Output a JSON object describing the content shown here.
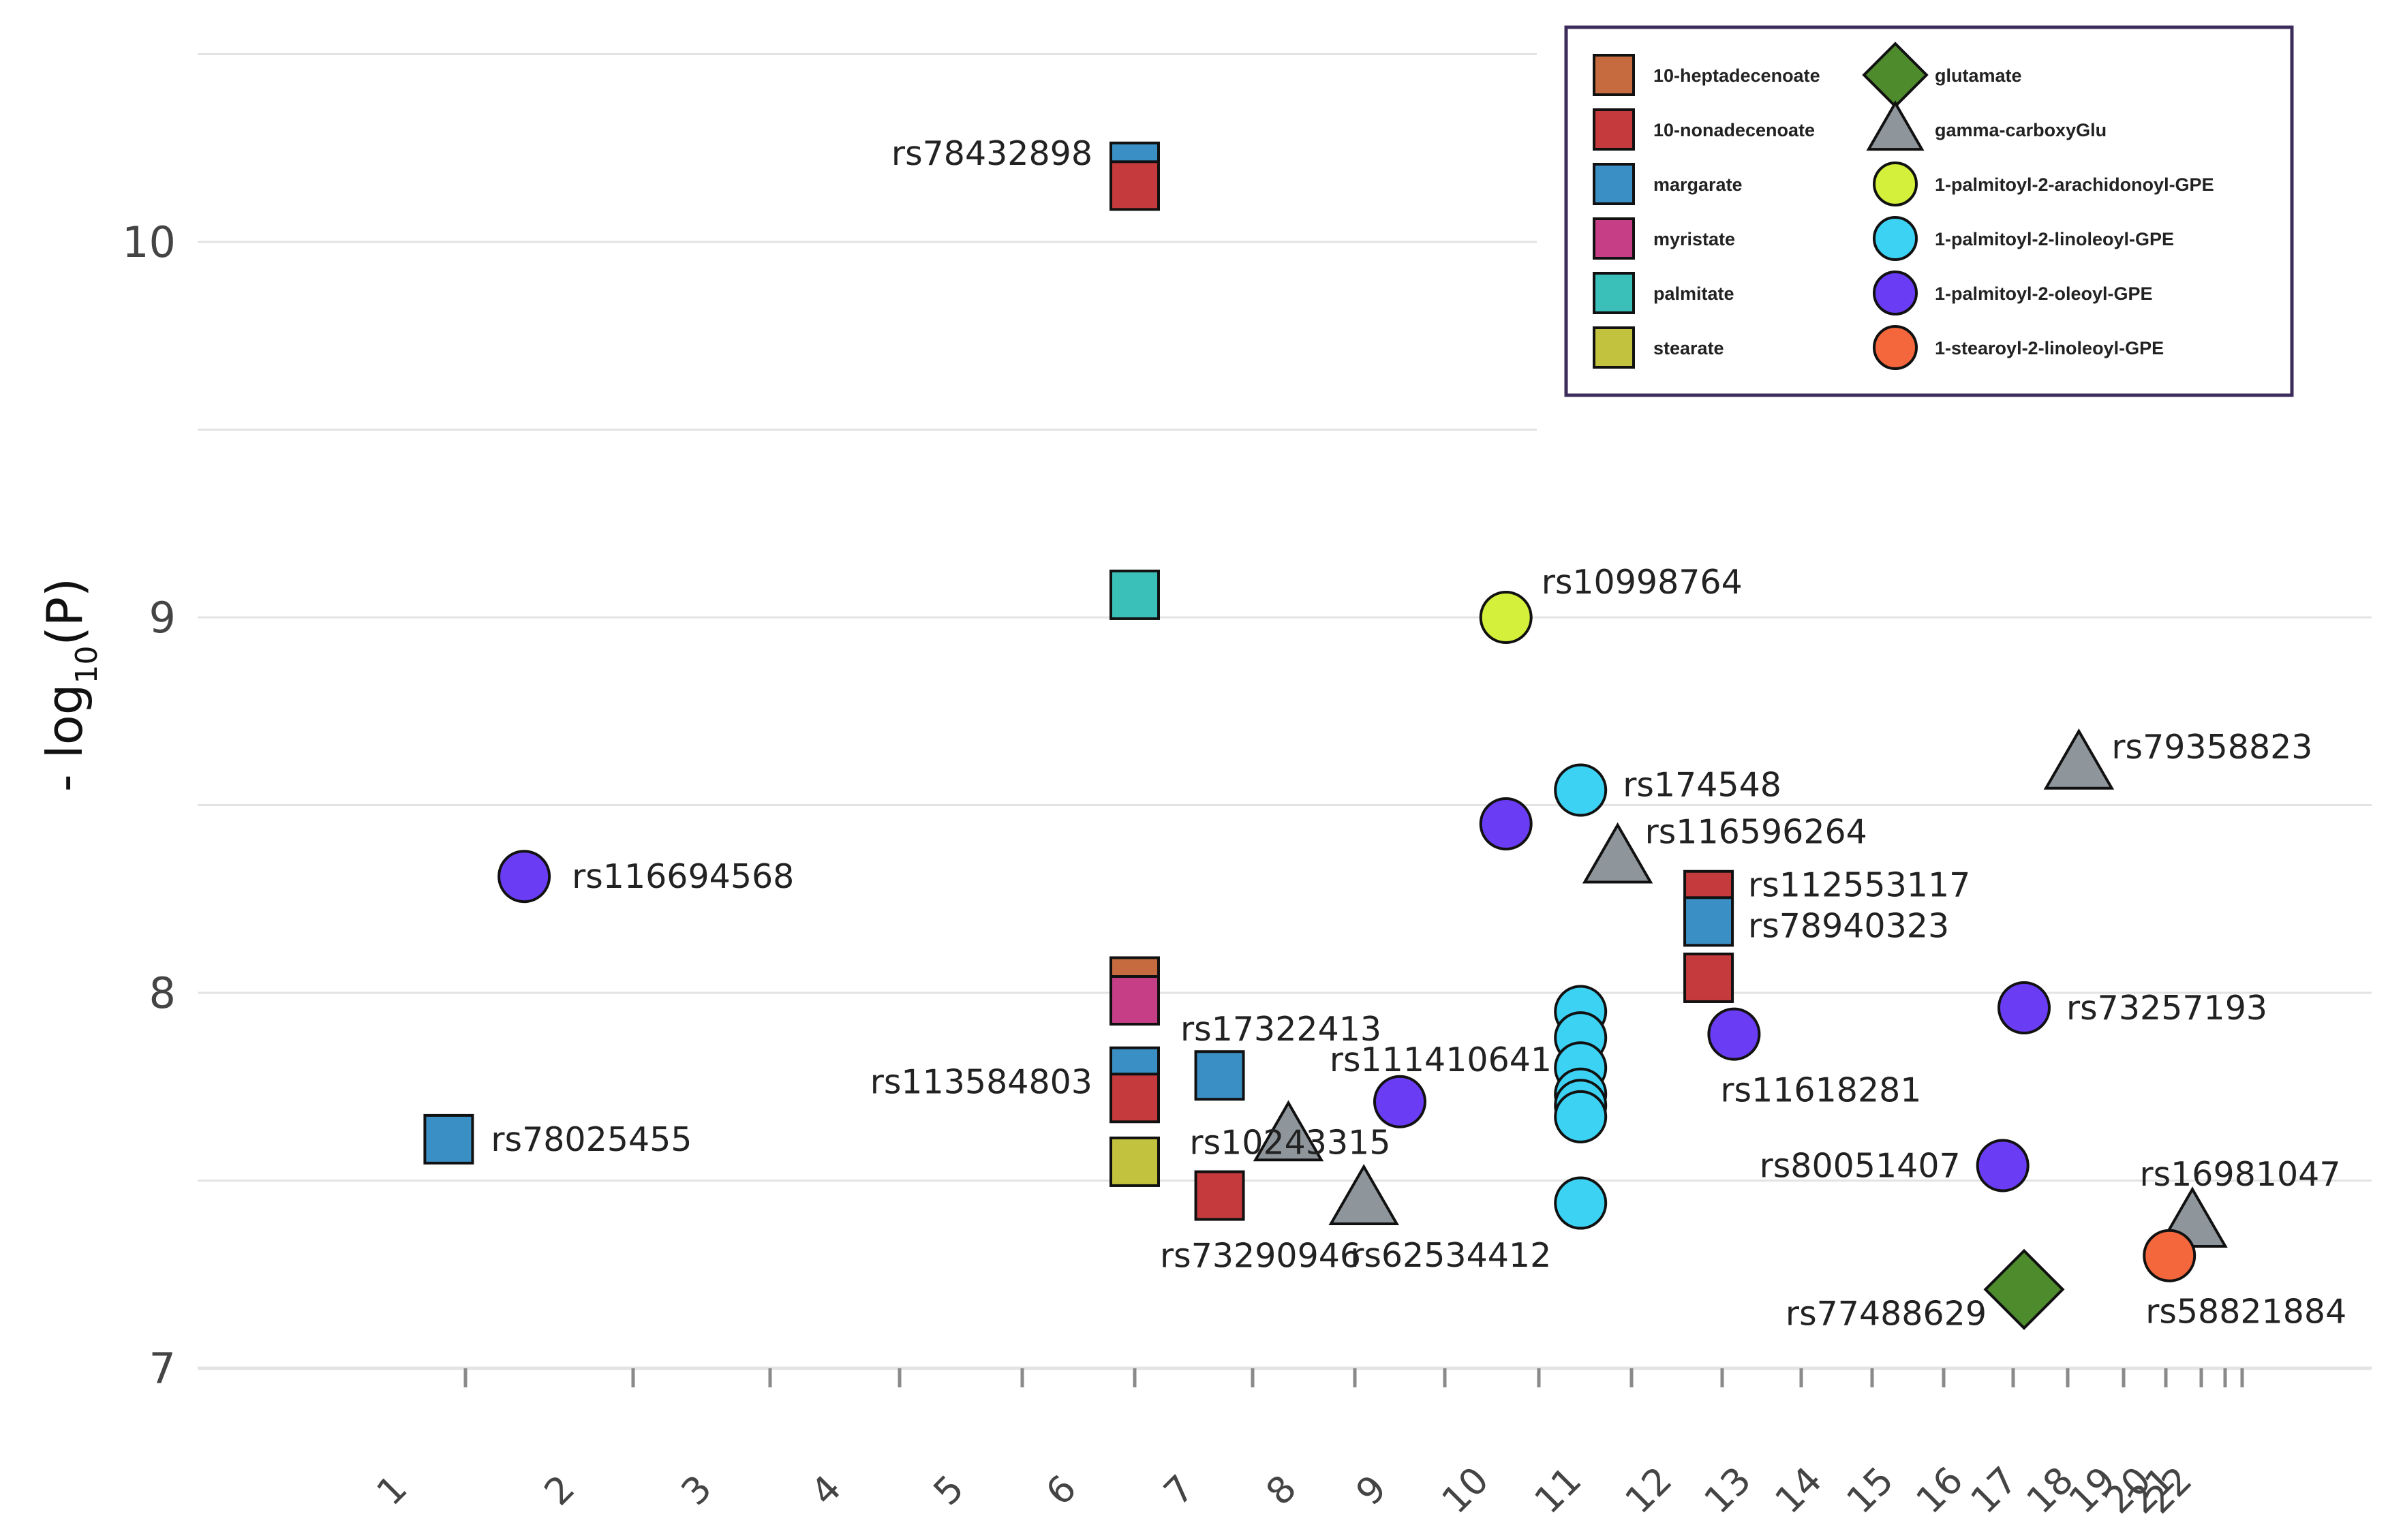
{
  "chart_data": {
    "type": "scatter",
    "ylabel_prefix": "- log",
    "ylabel_sub": "10",
    "ylabel_suffix": "(P)",
    "xlabel": "",
    "ylim": [
      7,
      10.5
    ],
    "y_ticks": [
      7,
      8,
      9,
      10
    ],
    "x_ticks": [
      "1",
      "2",
      "3",
      "4",
      "5",
      "6",
      "7",
      "8",
      "9",
      "10",
      "11",
      "12",
      "13",
      "14",
      "15",
      "16",
      "17",
      "18",
      "19",
      "20",
      "21",
      "22"
    ],
    "grid": true,
    "legend": {
      "placement": "top-right",
      "entries": [
        {
          "name": "10-heptadecenoate",
          "shape": "square",
          "color": "#c66a3f"
        },
        {
          "name": "10-nonadecenoate",
          "shape": "square",
          "color": "#c53a3c"
        },
        {
          "name": "margarate",
          "shape": "square",
          "color": "#3a8fc4"
        },
        {
          "name": "myristate",
          "shape": "square",
          "color": "#c63f86"
        },
        {
          "name": "palmitate",
          "shape": "square",
          "color": "#3bbfb9"
        },
        {
          "name": "stearate",
          "shape": "square",
          "color": "#c2c23e"
        },
        {
          "name": "glutamate",
          "shape": "diamond",
          "color": "#4e8b2c"
        },
        {
          "name": "gamma-carboxyGlu",
          "shape": "triangle",
          "color": "#8e969c"
        },
        {
          "name": "1-palmitoyl-2-arachidonoyl-GPE",
          "shape": "circle",
          "color": "#d5f03a"
        },
        {
          "name": "1-palmitoyl-2-linoleoyl-GPE",
          "shape": "circle",
          "color": "#3cd2f4"
        },
        {
          "name": "1-palmitoyl-2-oleoyl-GPE",
          "shape": "circle",
          "color": "#6a3cf4"
        },
        {
          "name": "1-stearoyl-2-linoleoyl-GPE",
          "shape": "circle",
          "color": "#f4663c"
        }
      ]
    },
    "points": [
      {
        "chr": 1.35,
        "y": 8.31,
        "trait": "1-palmitoyl-2-oleoyl-GPE",
        "label": "rs116694568"
      },
      {
        "chr": 0.9,
        "y": 7.61,
        "trait": "margarate",
        "label": "rs78025455"
      },
      {
        "chr": 6.0,
        "y": 10.2,
        "trait": "margarate",
        "label": "rs78432898"
      },
      {
        "chr": 6.0,
        "y": 10.15,
        "trait": "10-nonadecenoate",
        "label": ""
      },
      {
        "chr": 6.0,
        "y": 9.06,
        "trait": "palmitate",
        "label": ""
      },
      {
        "chr": 6.0,
        "y": 7.98,
        "trait": "myristate",
        "label": ""
      },
      {
        "chr": 6.0,
        "y": 8.03,
        "trait": "10-heptadecenoate",
        "label": ""
      },
      {
        "chr": 6.0,
        "y": 7.79,
        "trait": "margarate",
        "label": ""
      },
      {
        "chr": 6.0,
        "y": 7.72,
        "trait": "10-nonadecenoate",
        "label": "rs113584803"
      },
      {
        "chr": 6.0,
        "y": 7.55,
        "trait": "stearate",
        "label": ""
      },
      {
        "chr": 6.72,
        "y": 7.78,
        "trait": "margarate",
        "label": "rs17322413"
      },
      {
        "chr": 6.72,
        "y": 7.46,
        "trait": "10-nonadecenoate",
        "label": "rs73290946"
      },
      {
        "chr": 7.35,
        "y": 7.62,
        "trait": "gamma-carboxyGlu",
        "label": "rs10243315"
      },
      {
        "chr": 8.1,
        "y": 7.45,
        "trait": "gamma-carboxyGlu",
        "label": "rs62534412"
      },
      {
        "chr": 8.5,
        "y": 7.71,
        "trait": "1-palmitoyl-2-oleoyl-GPE",
        "label": "rs111410641"
      },
      {
        "chr": 9.65,
        "y": 9.0,
        "trait": "1-palmitoyl-2-arachidonoyl-GPE",
        "label": "rs10998764"
      },
      {
        "chr": 9.65,
        "y": 8.45,
        "trait": "1-palmitoyl-2-oleoyl-GPE",
        "label": ""
      },
      {
        "chr": 10.45,
        "y": 8.54,
        "trait": "1-palmitoyl-2-linoleoyl-GPE",
        "label": "rs174548"
      },
      {
        "chr": 10.45,
        "y": 7.95,
        "trait": "1-palmitoyl-2-linoleoyl-GPE",
        "label": ""
      },
      {
        "chr": 10.45,
        "y": 7.88,
        "trait": "1-palmitoyl-2-linoleoyl-GPE",
        "label": ""
      },
      {
        "chr": 10.45,
        "y": 7.8,
        "trait": "1-palmitoyl-2-linoleoyl-GPE",
        "label": ""
      },
      {
        "chr": 10.45,
        "y": 7.73,
        "trait": "1-palmitoyl-2-linoleoyl-GPE",
        "label": ""
      },
      {
        "chr": 10.45,
        "y": 7.7,
        "trait": "1-palmitoyl-2-linoleoyl-GPE",
        "label": ""
      },
      {
        "chr": 10.45,
        "y": 7.67,
        "trait": "1-palmitoyl-2-linoleoyl-GPE",
        "label": ""
      },
      {
        "chr": 10.45,
        "y": 7.44,
        "trait": "1-palmitoyl-2-linoleoyl-GPE",
        "label": ""
      },
      {
        "chr": 10.85,
        "y": 8.36,
        "trait": "gamma-carboxyGlu",
        "label": "rs116596264"
      },
      {
        "chr": 11.85,
        "y": 8.26,
        "trait": "10-nonadecenoate",
        "label": "rs112553117"
      },
      {
        "chr": 11.85,
        "y": 8.19,
        "trait": "margarate",
        "label": "rs78940323"
      },
      {
        "chr": 11.85,
        "y": 8.04,
        "trait": "10-nonadecenoate",
        "label": ""
      },
      {
        "chr": 12.15,
        "y": 7.89,
        "trait": "1-palmitoyl-2-oleoyl-GPE",
        "label": "rs11618281"
      },
      {
        "chr": 15.85,
        "y": 7.54,
        "trait": "1-palmitoyl-2-oleoyl-GPE",
        "label": "rs80051407"
      },
      {
        "chr": 16.2,
        "y": 7.96,
        "trait": "1-palmitoyl-2-oleoyl-GPE",
        "label": "rs73257193"
      },
      {
        "chr": 16.2,
        "y": 7.21,
        "trait": "glutamate",
        "label": "rs77488629"
      },
      {
        "chr": 17.2,
        "y": 8.61,
        "trait": "gamma-carboxyGlu",
        "label": "rs79358823"
      },
      {
        "chr": 19.1,
        "y": 7.3,
        "trait": "1-stearoyl-2-linoleoyl-GPE",
        "label": "rs58821884"
      },
      {
        "chr": 19.75,
        "y": 7.39,
        "trait": "gamma-carboxyGlu",
        "label": "rs16981047"
      }
    ]
  }
}
